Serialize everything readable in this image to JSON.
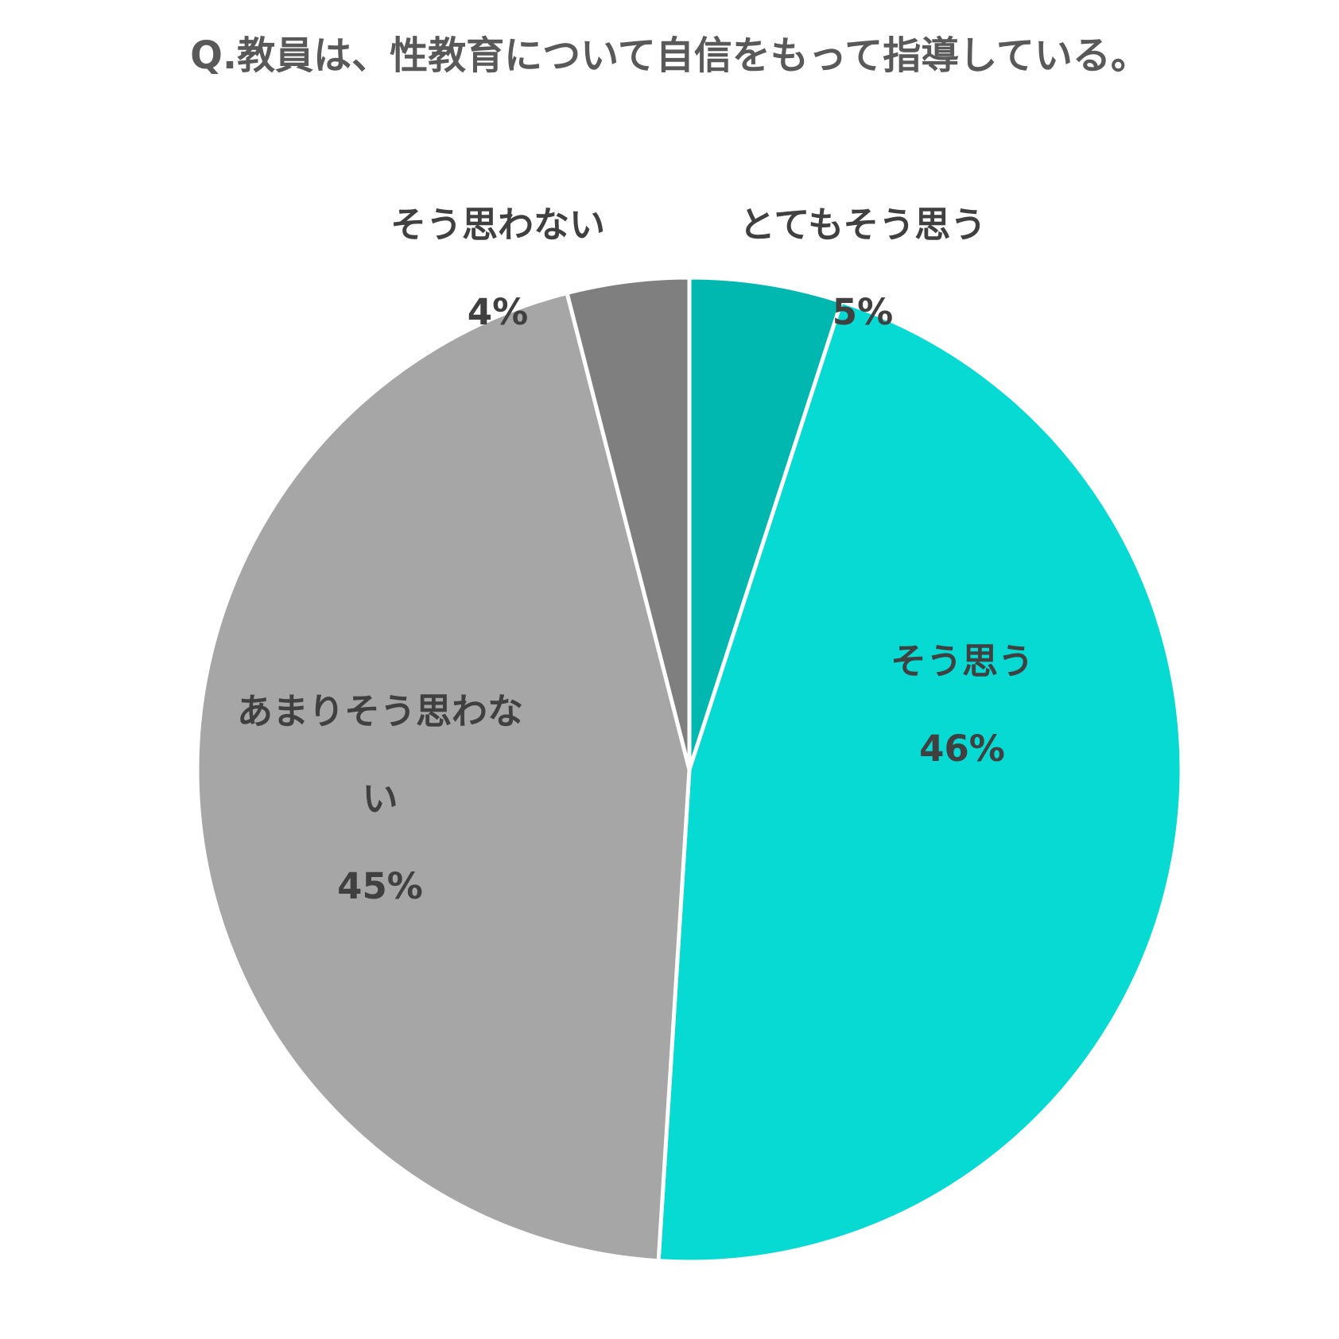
{
  "chart_data": {
    "type": "pie",
    "title": "Q.教員は、性教育について自信をもって指導している。",
    "categories": [
      "とてもそう思う",
      "そう思う",
      "あまりそう思わない",
      "そう思わない"
    ],
    "values": [
      5,
      46,
      45,
      4
    ],
    "value_labels": [
      "5%",
      "46%",
      "45%",
      "4%"
    ],
    "colors": [
      "#00b8b0",
      "#07d9d3",
      "#a6a6a6",
      "#7f7f7f"
    ]
  }
}
